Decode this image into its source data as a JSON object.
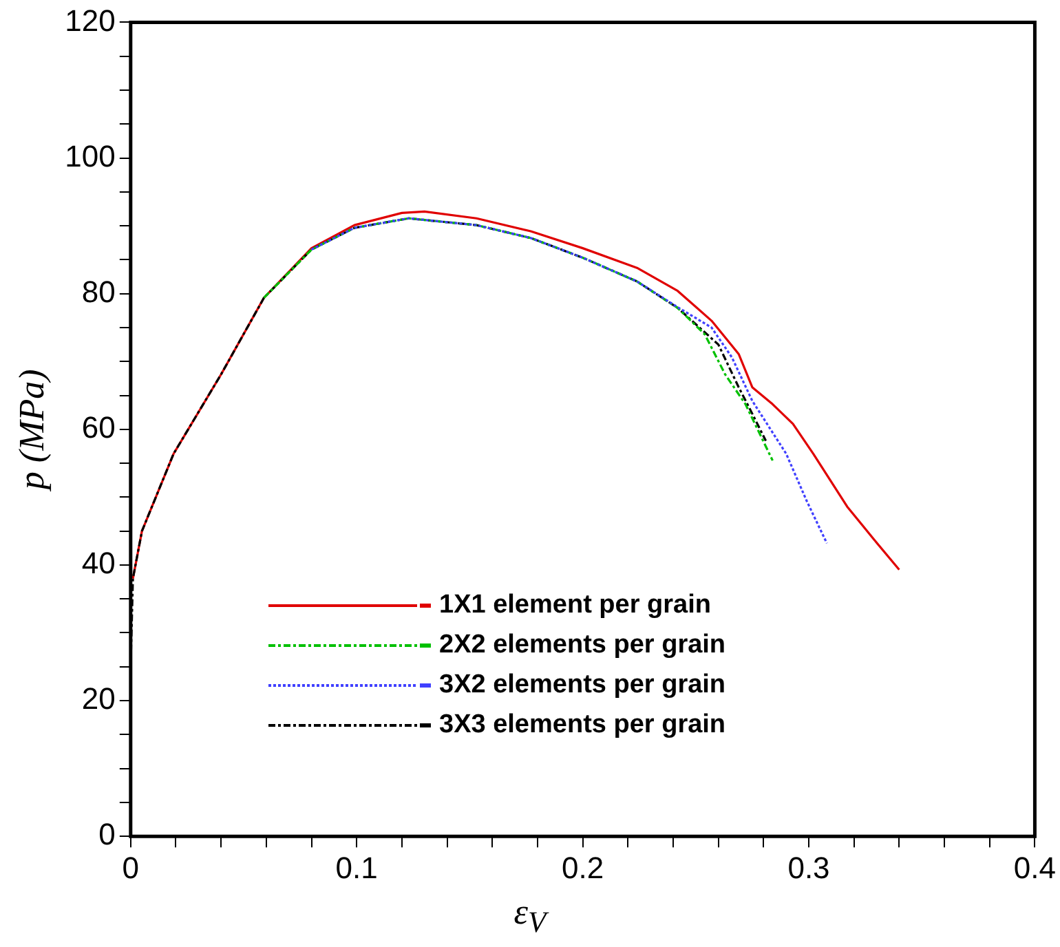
{
  "chart_data": {
    "type": "line",
    "xlabel": "ε$_{V}$",
    "ylabel": "p (MPa)",
    "xlim": [
      0,
      0.4
    ],
    "ylim": [
      0,
      120
    ],
    "xticks": [
      0,
      {
        "value": 0.02,
        "label": null
      },
      {
        "value": 0.04,
        "label": null
      },
      {
        "value": 0.06,
        "label": null
      },
      {
        "value": 0.08,
        "label": null
      },
      0.1,
      {
        "value": 0.12,
        "label": null
      },
      {
        "value": 0.14,
        "label": null
      },
      {
        "value": 0.16,
        "label": null
      },
      {
        "value": 0.18,
        "label": null
      },
      0.2,
      {
        "value": 0.22,
        "label": null
      },
      {
        "value": 0.24,
        "label": null
      },
      {
        "value": 0.26,
        "label": null
      },
      {
        "value": 0.28,
        "label": null
      },
      0.3,
      {
        "value": 0.32,
        "label": null
      },
      {
        "value": 0.34,
        "label": null
      },
      {
        "value": 0.36,
        "label": null
      },
      {
        "value": 0.38,
        "label": null
      },
      0.4
    ],
    "yticks": [
      0,
      {
        "value": 5,
        "label": null
      },
      {
        "value": 10,
        "label": null
      },
      {
        "value": 15,
        "label": null
      },
      20,
      {
        "value": 25,
        "label": null
      },
      {
        "value": 30,
        "label": null
      },
      {
        "value": 35,
        "label": null
      },
      40,
      {
        "value": 45,
        "label": null
      },
      {
        "value": 50,
        "label": null
      },
      {
        "value": 55,
        "label": null
      },
      60,
      {
        "value": 65,
        "label": null
      },
      {
        "value": 70,
        "label": null
      },
      {
        "value": 75,
        "label": null
      },
      80,
      {
        "value": 85,
        "label": null
      },
      {
        "value": 90,
        "label": null
      },
      {
        "value": 95,
        "label": null
      },
      100,
      {
        "value": 105,
        "label": null
      },
      {
        "value": 110,
        "label": null
      },
      {
        "value": 115,
        "label": null
      },
      120
    ],
    "grid": false,
    "legend": "bottom",
    "marker": "none",
    "series": [
      {
        "name": "1X1 element per grain",
        "color": "#e00000",
        "line_style": "solid",
        "x": [
          0.001,
          0.005,
          0.019,
          0.04,
          0.059,
          0.08,
          0.099,
          0.12,
          0.13,
          0.153,
          0.177,
          0.2,
          0.224,
          0.242,
          0.257,
          0.269,
          0.275,
          0.284,
          0.293,
          0.302,
          0.317,
          0.329,
          0.34
        ],
        "values": [
          38,
          45,
          56.4,
          68.1,
          79.4,
          86.7,
          90.1,
          91.9,
          92.1,
          91.1,
          89.2,
          86.7,
          83.8,
          80.4,
          76,
          71.1,
          66.2,
          63.7,
          60.8,
          56.4,
          48.6,
          43.7,
          39.3
        ]
      },
      {
        "name": "2X2 elements per grain",
        "color": "#00c000",
        "line_style": "dashed",
        "x": [
          0.059,
          0.08,
          0.099,
          0.123,
          0.153,
          0.177,
          0.2,
          0.224,
          0.242,
          0.254,
          0.263,
          0.272,
          0.284
        ],
        "values": [
          79.4,
          86.5,
          89.7,
          91.1,
          90.1,
          88.2,
          85.3,
          81.8,
          77.9,
          74,
          68.1,
          63.7,
          55.4
        ]
      },
      {
        "name": "3X2 elements per grain",
        "color": "#4040ff",
        "line_style": "dotted",
        "x": [
          0.08,
          0.099,
          0.123,
          0.153,
          0.177,
          0.2,
          0.224,
          0.242,
          0.257,
          0.266,
          0.275,
          0.29,
          0.299,
          0.308
        ],
        "values": [
          86.5,
          89.7,
          91.1,
          90.1,
          88.2,
          85.3,
          81.8,
          78,
          75,
          70.6,
          64.2,
          56.4,
          49.5,
          43.2
        ]
      },
      {
        "name": "3X3 elements per grain",
        "color": "#000000",
        "line_style": "dashed",
        "x": [
          0,
          0.001,
          0.005,
          0.019,
          0.04,
          0.059,
          0.08,
          0.099,
          0.123,
          0.153,
          0.177,
          0.2,
          0.224,
          0.242,
          0.26,
          0.269,
          0.275,
          0.281
        ],
        "values": [
          25,
          38,
          45,
          56.4,
          68.1,
          79.4,
          86.5,
          89.7,
          91.1,
          90.1,
          88.2,
          85.3,
          81.8,
          77.9,
          72.5,
          66.2,
          62.3,
          58.3
        ]
      }
    ]
  }
}
